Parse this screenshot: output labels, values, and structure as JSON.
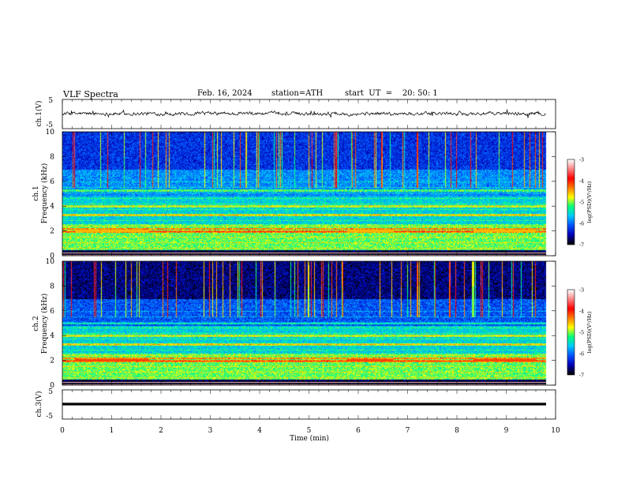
{
  "header": {
    "title": "VLF Spectra",
    "date": "Feb. 16, 2024",
    "station": "station=ATH",
    "start": "start  UT  =    20: 50: 1"
  },
  "chart_data": [
    {
      "type": "line",
      "title": "",
      "ylabel": "ch.1(V)",
      "ylim": [
        -5,
        5
      ],
      "xlim": [
        0,
        10
      ],
      "x_ticks": [
        0,
        1,
        2,
        3,
        4,
        5,
        6,
        7,
        8,
        9,
        10
      ],
      "y_ticks": [
        5,
        -5
      ],
      "series_description": "noisy waveform fluctuating near 0 V over the whole record (0 to ~9.8 min)"
    },
    {
      "type": "heatmap",
      "ylabel": "ch.1\nFrequency (kHz)",
      "ylim": [
        0,
        10
      ],
      "xlim": [
        0,
        10
      ],
      "x_ticks": [
        0,
        1,
        2,
        3,
        4,
        5,
        6,
        7,
        8,
        9,
        10
      ],
      "y_ticks": [
        0,
        2,
        4,
        6,
        8,
        10
      ],
      "colorbar": {
        "label": "log(PSD)(V²/Hz)",
        "range": [
          -7,
          -3
        ],
        "ticks": [
          -3,
          -4,
          -5,
          -6,
          -7
        ]
      },
      "bands_khz": [
        2.0,
        2.2,
        3.3,
        4.0,
        5.3
      ],
      "data_end_min": 9.8
    },
    {
      "type": "heatmap",
      "ylabel": "ch.2\nFrequency (kHz)",
      "ylim": [
        0,
        10
      ],
      "xlim": [
        0,
        10
      ],
      "x_ticks": [
        0,
        1,
        2,
        3,
        4,
        5,
        6,
        7,
        8,
        9,
        10
      ],
      "y_ticks": [
        0,
        2,
        4,
        6,
        8,
        10
      ],
      "colorbar": {
        "label": "log(PSD)(V²/Hz)",
        "range": [
          -7,
          -3
        ],
        "ticks": [
          -3,
          -4,
          -5,
          -6,
          -7
        ]
      },
      "bands_khz": [
        2.0,
        2.2,
        3.3,
        4.0,
        5.0
      ],
      "data_end_min": 9.8
    },
    {
      "type": "line",
      "ylabel": "ch.3(V)",
      "ylim": [
        -5,
        5
      ],
      "xlim": [
        0,
        10
      ],
      "x_ticks": [
        0,
        1,
        2,
        3,
        4,
        5,
        6,
        7,
        8,
        9,
        10
      ],
      "y_ticks": [
        5,
        -5
      ],
      "xlabel": "Time (min)",
      "series_description": "flat thick trace at about -1 V from 0 to ~9.8 min"
    }
  ],
  "colors": {
    "colormap": [
      "#000000",
      "#0000b4",
      "#0050ff",
      "#00c8ff",
      "#00ff80",
      "#ffff00",
      "#ff8000",
      "#ff0000",
      "#ff8080",
      "#ffffff"
    ],
    "trace": "#000000"
  }
}
